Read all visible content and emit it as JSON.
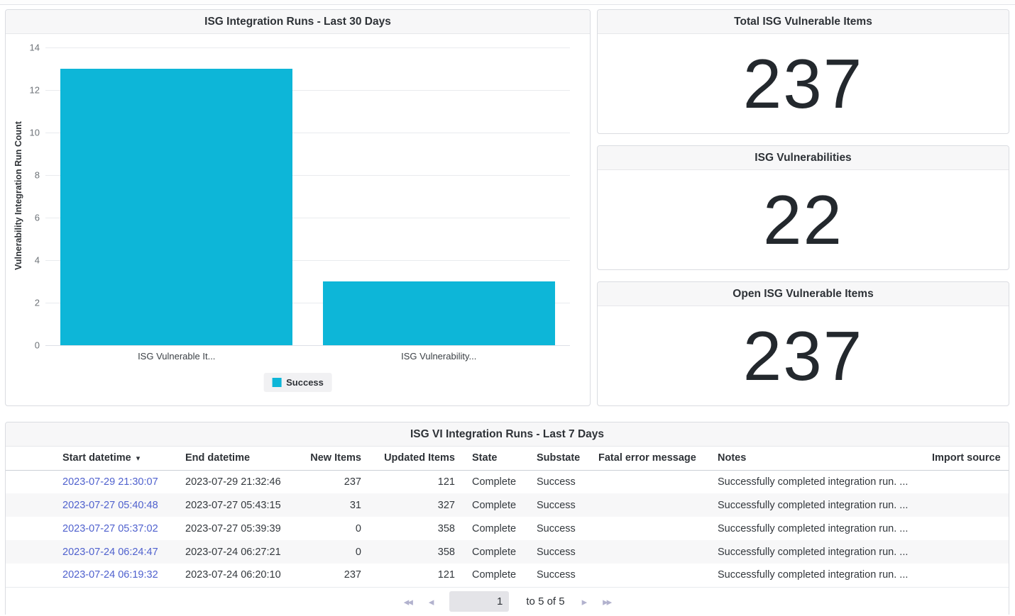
{
  "colors": {
    "accent_cyan": "#0db6d8",
    "link_blue": "#4f61ce"
  },
  "icons": {
    "sort_desc": "▾",
    "first_page": "◂◂",
    "prev_page": "◂",
    "next_page": "▸",
    "last_page": "▸▸"
  },
  "chart_data": {
    "type": "bar",
    "title": "ISG Integration Runs - Last 30 Days",
    "categories": [
      "ISG Vulnerable It...",
      "ISG Vulnerability..."
    ],
    "values": [
      13,
      3
    ],
    "series_name": "Success",
    "xlabel": "",
    "ylabel": "Vulnerability Integration Run Count",
    "ylim": [
      0,
      14
    ],
    "yticks": [
      0,
      2,
      4,
      6,
      8,
      10,
      12,
      14
    ],
    "grid": true,
    "legend_position": "bottom",
    "bar_color": "#0db6d8"
  },
  "stat_cards": [
    {
      "title": "Total ISG Vulnerable Items",
      "value": "237"
    },
    {
      "title": "ISG Vulnerabilities",
      "value": "22"
    },
    {
      "title": "Open ISG Vulnerable Items",
      "value": "237"
    }
  ],
  "table_card": {
    "title": "ISG VI Integration Runs - Last 7 Days",
    "columns": [
      {
        "label": "Start datetime",
        "align": "left",
        "sorted": "desc"
      },
      {
        "label": "End datetime",
        "align": "left"
      },
      {
        "label": "New Items",
        "align": "right"
      },
      {
        "label": "Updated Items",
        "align": "right"
      },
      {
        "label": "State",
        "align": "left"
      },
      {
        "label": "Substate",
        "align": "left"
      },
      {
        "label": "Fatal error message",
        "align": "left"
      },
      {
        "label": "Notes",
        "align": "left"
      },
      {
        "label": "Import source",
        "align": "right"
      }
    ],
    "rows": [
      [
        "2023-07-29 21:30:07",
        "2023-07-29 21:32:46",
        "237",
        "121",
        "Complete",
        "Success",
        "",
        "Successfully completed integration run. ...",
        ""
      ],
      [
        "2023-07-27 05:40:48",
        "2023-07-27 05:43:15",
        "31",
        "327",
        "Complete",
        "Success",
        "",
        "Successfully completed integration run. ...",
        ""
      ],
      [
        "2023-07-27 05:37:02",
        "2023-07-27 05:39:39",
        "0",
        "358",
        "Complete",
        "Success",
        "",
        "Successfully completed integration run. ...",
        ""
      ],
      [
        "2023-07-24 06:24:47",
        "2023-07-24 06:27:21",
        "0",
        "358",
        "Complete",
        "Success",
        "",
        "Successfully completed integration run. ...",
        ""
      ],
      [
        "2023-07-24 06:19:32",
        "2023-07-24 06:20:10",
        "237",
        "121",
        "Complete",
        "Success",
        "",
        "Successfully completed integration run. ...",
        ""
      ]
    ],
    "pagination": {
      "page_value": "1",
      "range_text": "to 5 of 5"
    }
  }
}
